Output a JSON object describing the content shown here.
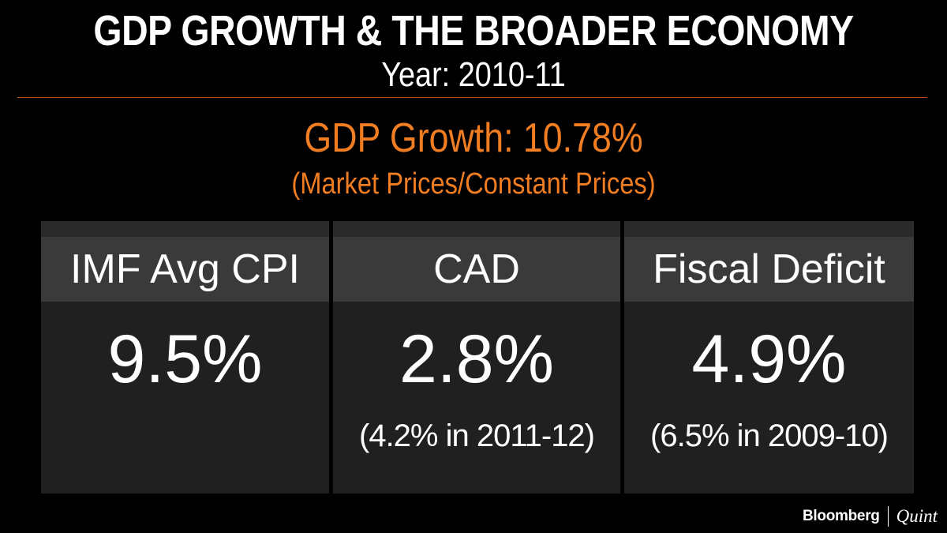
{
  "header": {
    "title": "GDP GROWTH & THE BROADER ECONOMY",
    "subtitle": "Year: 2010-11"
  },
  "highlight": {
    "gdp_growth": "GDP Growth: 10.78%",
    "gdp_note": "(Market Prices/Constant Prices)"
  },
  "cards": [
    {
      "label": "IMF Avg CPI",
      "value": "9.5%",
      "note": ""
    },
    {
      "label": "CAD",
      "value": "2.8%",
      "note": "(4.2% in 2011-12)"
    },
    {
      "label": "Fiscal Deficit",
      "value": "4.9%",
      "note": "(6.5% in 2009-10)"
    }
  ],
  "brand": {
    "primary": "Bloomberg",
    "secondary": "Quint"
  },
  "colors": {
    "background": "#000000",
    "accent": "#f07d22",
    "card_bg": "#202020",
    "card_head_bg": "#3a3a3a"
  }
}
